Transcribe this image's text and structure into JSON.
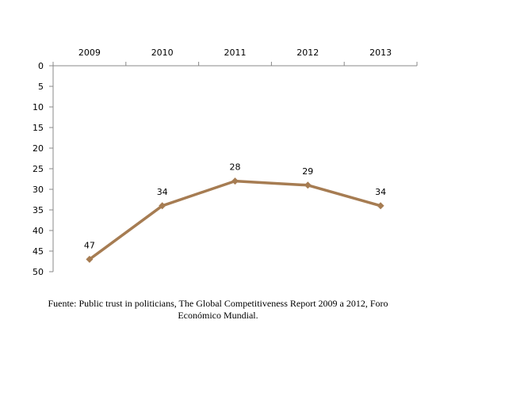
{
  "chart_data": {
    "type": "line",
    "x": [
      "2009",
      "2010",
      "2011",
      "2012",
      "2013"
    ],
    "series": [
      {
        "values": [
          47,
          34,
          28,
          29,
          34
        ]
      }
    ],
    "data_labels": [
      "47",
      "34",
      "28",
      "29",
      "34"
    ],
    "y_ticks": [
      "0",
      "5",
      "10",
      "15",
      "20",
      "25",
      "30",
      "35",
      "40",
      "45",
      "50"
    ],
    "ylim": [
      0,
      50
    ],
    "y_axis_reversed": true,
    "x_axis_position": "top",
    "grid": false,
    "legend": "none",
    "line_color": "#a67c52",
    "marker": "diamond"
  },
  "source_note": "Fuente: Public trust in politicians, The Global Competitiveness Report 2009 a 2012, Foro Económico Mundial."
}
